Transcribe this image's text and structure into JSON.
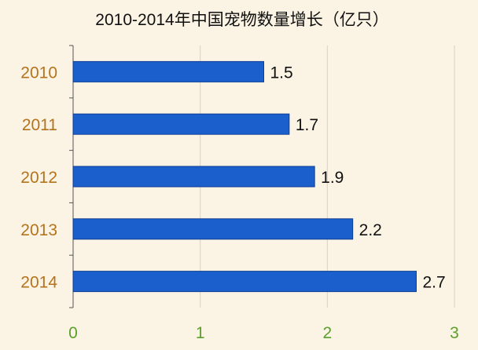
{
  "chart_data": {
    "type": "bar",
    "orientation": "horizontal",
    "title": "2010-2014年中国宠物数量增长（亿只）",
    "categories": [
      "2010",
      "2011",
      "2012",
      "2013",
      "2014"
    ],
    "values": [
      1.5,
      1.7,
      1.9,
      2.2,
      2.7
    ],
    "data_labels": [
      "1.5",
      "1.7",
      "1.9",
      "2.2",
      "2.7"
    ],
    "xlim": [
      0,
      3
    ],
    "x_ticks": [
      0,
      1,
      2,
      3
    ],
    "x_tick_labels": [
      "0",
      "1",
      "2",
      "3"
    ],
    "grid": "vertical",
    "legend": "none",
    "colors": {
      "background": "#fbf3e4",
      "bar": "#1a5fcc",
      "bar_edge": "#0d3e94",
      "category_label": "#b5731b",
      "tick_label": "#5aa02c",
      "grid": "#d9d2c4",
      "axis": "#555555"
    }
  }
}
